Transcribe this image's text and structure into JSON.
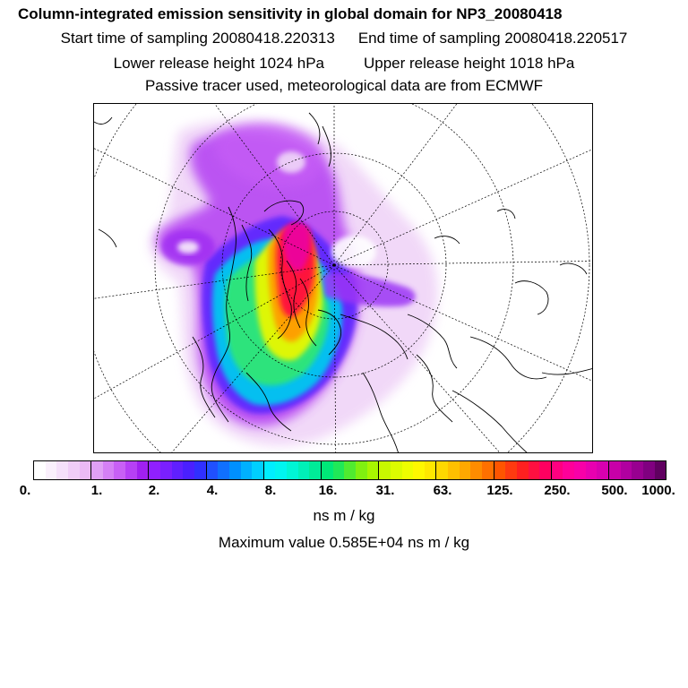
{
  "title": "Column-integrated emission sensitivity in global domain for NP3_20080418",
  "sampling": {
    "start_label": "Start time of sampling 20080418.220313",
    "end_label": "End time of sampling 20080418.220517"
  },
  "release": {
    "lower_label": "Lower release height 1024 hPa",
    "upper_label": "Upper release height 1018 hPa"
  },
  "tracer_note": "Passive tracer used, meteorological data are from ECMWF",
  "colorbar": {
    "tick_labels": [
      "0.",
      "1.",
      "2.",
      "4.",
      "8.",
      "16.",
      "31.",
      "63.",
      "125.",
      "250.",
      "500.",
      "1000."
    ],
    "unit": "ns m / kg",
    "colors": [
      "#ffffff",
      "#faf0fc",
      "#f5e0fa",
      "#f0cdf7",
      "#ebbaf5",
      "#e0a0f5",
      "#d580f5",
      "#c860f5",
      "#b640f5",
      "#a020f0",
      "#9020ff",
      "#7a20ff",
      "#6020ff",
      "#4a20ff",
      "#3030ff",
      "#2050ff",
      "#1070ff",
      "#0090ff",
      "#00b0ff",
      "#00cfff",
      "#00eeff",
      "#00f5f0",
      "#00f5d5",
      "#00f0b8",
      "#00eb98",
      "#00e878",
      "#20e858",
      "#50eb30",
      "#80f010",
      "#a8f500",
      "#c8f800",
      "#dcfc00",
      "#eefe00",
      "#fff800",
      "#ffe800",
      "#ffd800",
      "#ffc000",
      "#ffa800",
      "#ff8c00",
      "#ff7000",
      "#ff5500",
      "#ff3a10",
      "#ff2020",
      "#ff1040",
      "#ff0060",
      "#ff0080",
      "#ff0099",
      "#f800a8",
      "#e800b0",
      "#d800b0",
      "#c800a8",
      "#b000a0",
      "#980090",
      "#800080",
      "#600060"
    ]
  },
  "max_value_label": "Maximum value  0.585E+04 ns m / kg"
}
